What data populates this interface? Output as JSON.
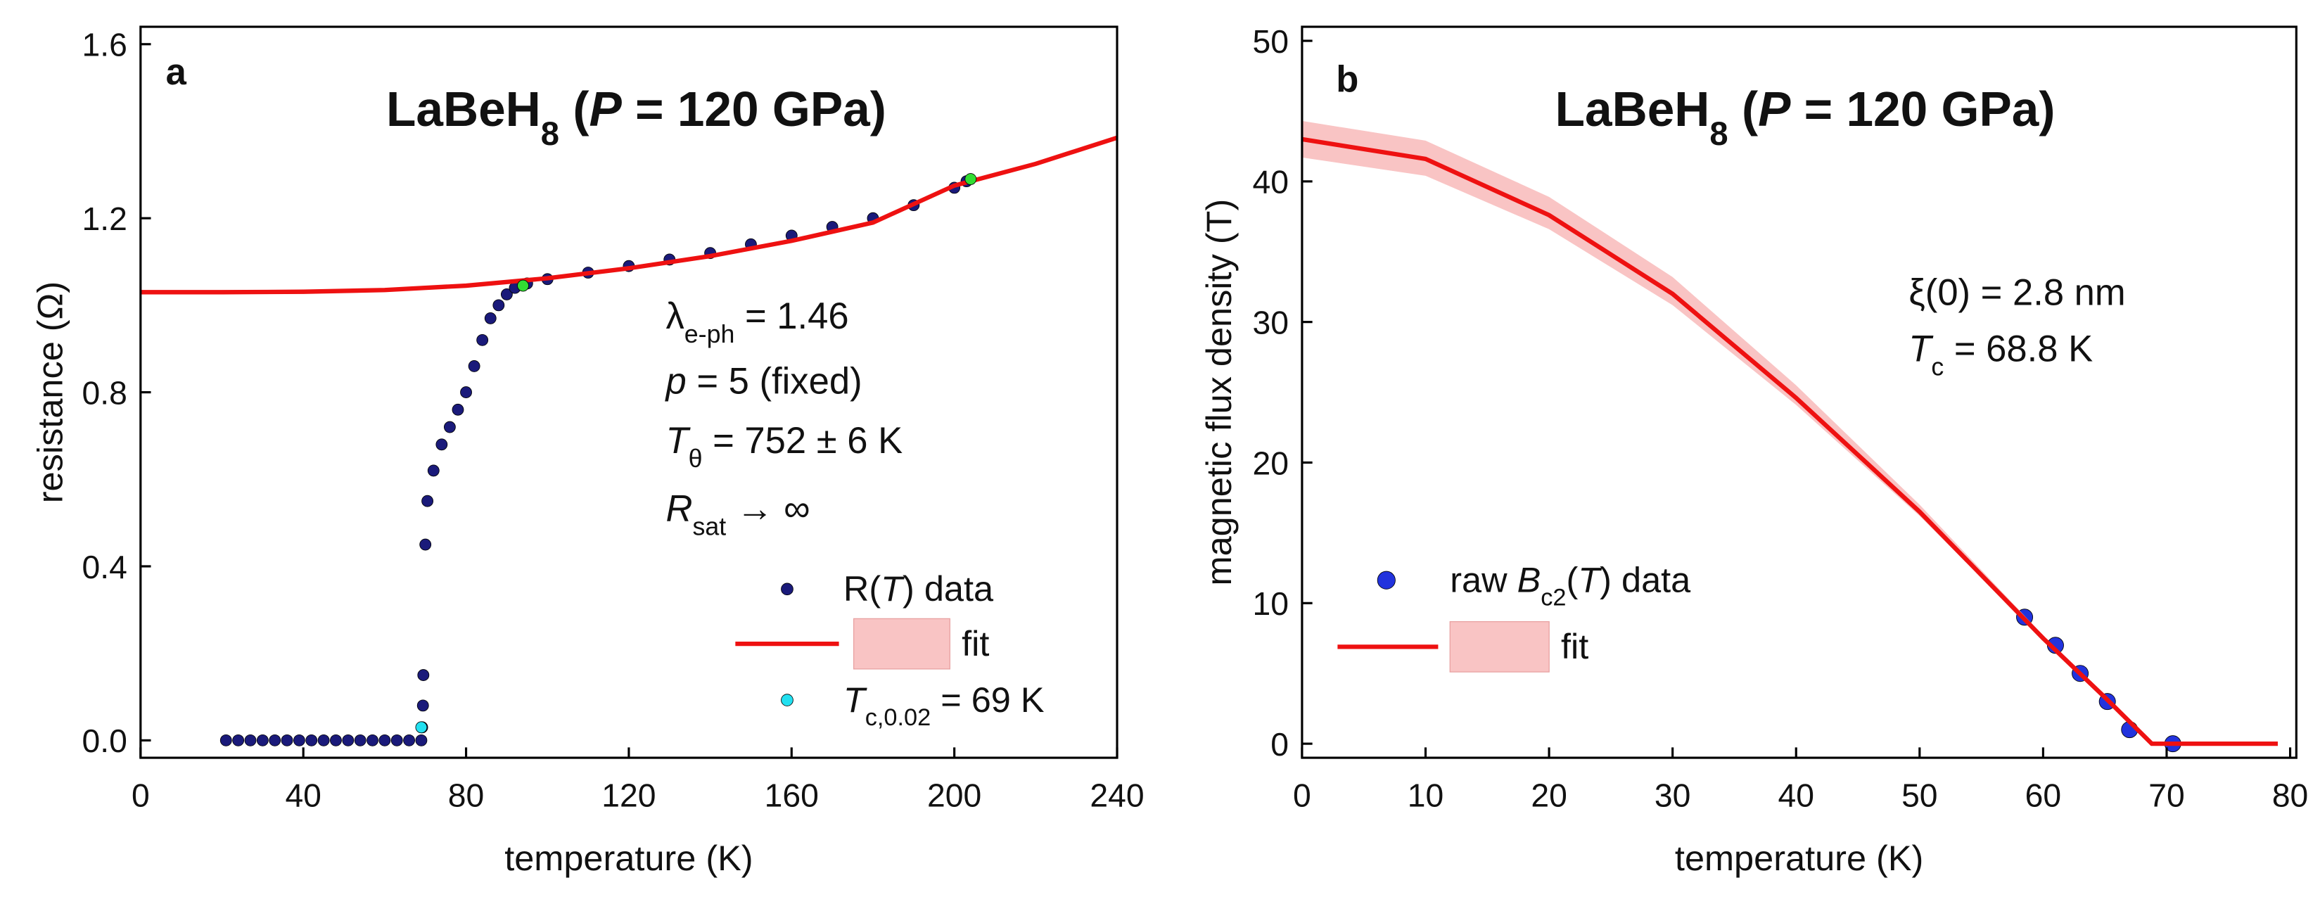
{
  "chart_data": [
    {
      "type": "scatter",
      "panel": "a",
      "title": [
        "LaBeH",
        "8",
        " (",
        "P",
        " = 120 GPa)"
      ],
      "xlabel": "temperature (K)",
      "ylabel": "resistance (Ω)",
      "xlim": [
        0,
        240
      ],
      "ylim": [
        -0.04,
        1.64
      ],
      "xticks": [
        0,
        40,
        80,
        120,
        160,
        200,
        240
      ],
      "yticks": [
        {
          "value": 0,
          "label": "0.0"
        },
        0.4,
        0.8,
        1.2,
        1.6
      ],
      "annotations": [
        [
          "λ",
          "e-ph",
          " = 1.46"
        ],
        [
          "p",
          " = 5 (fixed)"
        ],
        [
          "T",
          "θ",
          " = 752 ± 6 K"
        ],
        [
          "R",
          "sat",
          " → ∞"
        ]
      ],
      "series": [
        {
          "name": [
            "R(",
            "T",
            ") data"
          ],
          "color": "#1a1a7a",
          "mode": "markers",
          "x": [
            21,
            24,
            27,
            30,
            33,
            36,
            39,
            42,
            45,
            48,
            51,
            54,
            57,
            60,
            63,
            66,
            69,
            69.2,
            69.4,
            69.5,
            70,
            70.5,
            72,
            74,
            76,
            78,
            80,
            82,
            84,
            86,
            88,
            90,
            92,
            95,
            100,
            110,
            120,
            130,
            140,
            150,
            160,
            170,
            180,
            190,
            200,
            203
          ],
          "values": [
            0,
            0,
            0,
            0,
            0,
            0,
            0,
            0,
            0,
            0,
            0,
            0,
            0,
            0,
            0,
            0,
            0,
            0.03,
            0.08,
            0.15,
            0.45,
            0.55,
            0.62,
            0.68,
            0.72,
            0.76,
            0.8,
            0.86,
            0.92,
            0.97,
            1.0,
            1.025,
            1.04,
            1.05,
            1.06,
            1.075,
            1.09,
            1.105,
            1.12,
            1.14,
            1.16,
            1.18,
            1.2,
            1.23,
            1.27,
            1.285
          ]
        },
        {
          "name": [
            "fit"
          ],
          "color": "#ee1111",
          "band_color": "#f9c4c4",
          "mode": "line",
          "x": [
            0,
            20,
            40,
            60,
            80,
            100,
            120,
            140,
            160,
            180,
            200,
            220,
            240
          ],
          "values": [
            1.03,
            1.03,
            1.031,
            1.035,
            1.045,
            1.062,
            1.085,
            1.113,
            1.148,
            1.19,
            1.275,
            1.325,
            1.385
          ]
        },
        {
          "name": [
            "T",
            "c,0.02",
            " = 69 K"
          ],
          "color": "#22e0f0",
          "mode": "markers",
          "x": [
            69
          ],
          "values": [
            0.03
          ]
        },
        {
          "color": "#33dd33",
          "mode": "markers",
          "x": [
            94,
            204
          ],
          "values": [
            1.045,
            1.29
          ]
        }
      ]
    },
    {
      "type": "scatter",
      "panel": "b",
      "title": [
        "LaBeH",
        "8",
        " (",
        "P",
        " = 120 GPa)"
      ],
      "xlabel": "temperature (K)",
      "ylabel": "magnetic flux density (T)",
      "xlim": [
        0,
        80.5
      ],
      "ylim": [
        -1,
        51
      ],
      "xticks": [
        0,
        10,
        20,
        30,
        40,
        50,
        60,
        70,
        80
      ],
      "yticks": [
        0,
        10,
        20,
        30,
        40,
        50
      ],
      "annotations": [
        [
          "ξ(0) = 2.8 nm"
        ],
        [
          "T",
          "c",
          " = 68.8 K"
        ]
      ],
      "series": [
        {
          "name": [
            "raw ",
            "B",
            "c2",
            "(",
            "T",
            ") data"
          ],
          "color": "#2233dd",
          "mode": "markers",
          "x": [
            58.5,
            61,
            63,
            65.2,
            67,
            70.5
          ],
          "values": [
            9,
            7,
            5,
            3,
            1,
            0
          ]
        },
        {
          "name": [
            "fit"
          ],
          "color": "#ee1111",
          "band_color": "#f9c4c4",
          "mode": "line",
          "x": [
            0,
            10,
            20,
            30,
            40,
            50,
            60,
            65,
            68.8,
            79
          ],
          "values": [
            43,
            41.6,
            37.6,
            32,
            24.6,
            16.5,
            7.5,
            3.3,
            0,
            0
          ],
          "lower": [
            41.7,
            40.4,
            36.6,
            31.2,
            24.1,
            16.2,
            7.4,
            3.25,
            0,
            0
          ],
          "upper": [
            44.3,
            42.9,
            38.9,
            33.2,
            25.5,
            17,
            7.7,
            3.4,
            0,
            0
          ]
        }
      ]
    }
  ]
}
